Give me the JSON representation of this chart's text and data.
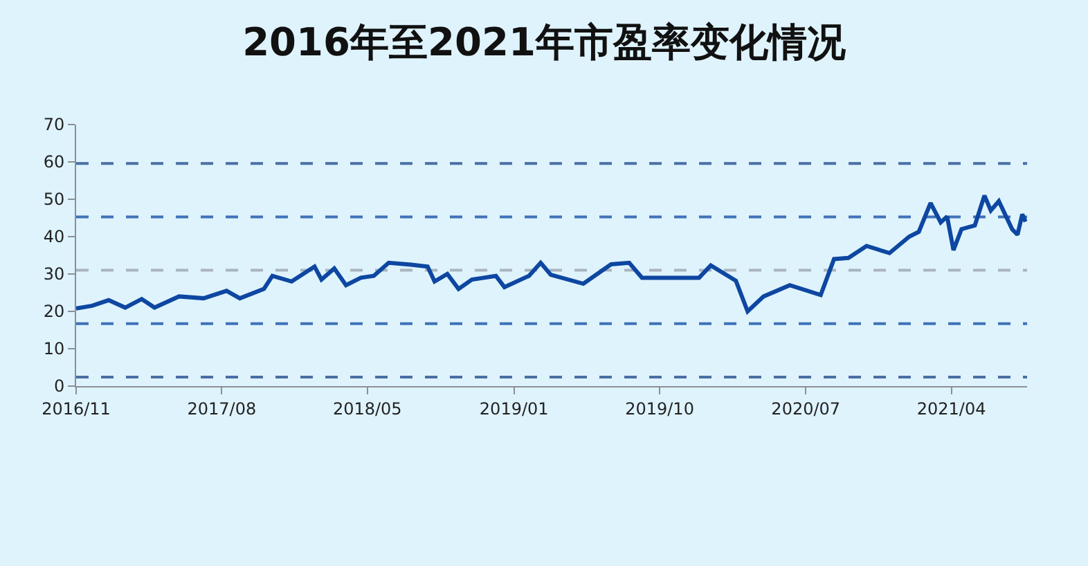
{
  "chart_data": {
    "type": "line",
    "title": "2016年至2021年市盈率变化情况",
    "x": [
      "2016-11-01",
      "2016-12-01",
      "2017-01-01",
      "2017-02-01",
      "2017-03-04",
      "2017-03-28",
      "2017-05-13",
      "2017-06-28",
      "2017-08-10",
      "2017-09-04",
      "2017-10-19",
      "2017-11-04",
      "2017-12-10",
      "2018-01-22",
      "2018-02-04",
      "2018-02-28",
      "2018-03-22",
      "2018-04-19",
      "2018-05-13",
      "2018-06-10",
      "2018-07-22",
      "2018-08-22",
      "2018-09-04",
      "2018-09-28",
      "2018-10-19",
      "2018-11-13",
      "2018-12-28",
      "2019-01-13",
      "2019-02-28",
      "2019-03-22",
      "2019-04-10",
      "2019-06-10",
      "2019-08-01",
      "2019-09-04",
      "2019-09-28",
      "2020-01-13",
      "2020-02-04",
      "2020-03-22",
      "2020-04-13",
      "2020-05-13",
      "2020-07-01",
      "2020-08-28",
      "2020-09-22",
      "2020-10-19",
      "2020-11-22",
      "2021-01-04",
      "2021-02-10",
      "2021-02-28",
      "2021-03-22",
      "2021-04-10",
      "2021-04-22",
      "2021-05-04",
      "2021-05-19",
      "2021-06-13",
      "2021-07-01",
      "2021-07-13",
      "2021-07-28",
      "2021-08-22",
      "2021-09-01",
      "2021-09-10",
      "2021-09-16"
    ],
    "series": [
      {
        "color": "#0d47a1",
        "values": [
          20.8,
          21.5,
          23,
          21,
          23.3,
          21,
          24,
          23.5,
          25.5,
          23.5,
          26,
          29.5,
          28,
          32,
          28.5,
          31.5,
          27,
          29,
          29.5,
          33,
          32.5,
          32,
          28,
          30,
          26,
          28.5,
          29.5,
          26.5,
          29.5,
          33,
          29.8,
          27.4,
          32.6,
          33,
          29,
          29,
          32.3,
          28.2,
          20,
          24,
          27,
          24.4,
          34,
          34.3,
          37.5,
          35.6,
          40,
          41.3,
          49,
          43.8,
          45.4,
          36.4,
          42,
          43,
          51,
          47,
          49.5,
          42,
          40.5,
          46,
          44
        ]
      }
    ],
    "xlim": [
      "2016-11-01",
      "2021-09-19"
    ],
    "xticks": [
      {
        "value": "2016-11-01",
        "label": "2016/11"
      },
      {
        "value": "2017-08-01",
        "label": "2017/08"
      },
      {
        "value": "2018-05-01",
        "label": "2018/05"
      },
      {
        "value": "2019-01-31",
        "label": "2019/01"
      },
      {
        "value": "2019-10-31",
        "label": "2019/10"
      },
      {
        "value": "2020-07-31",
        "label": "2020/07"
      },
      {
        "value": "2021-04-30",
        "label": "2021/04"
      }
    ],
    "ylim": [
      0,
      70
    ],
    "yticks": [
      0,
      10,
      20,
      30,
      40,
      50,
      60,
      70
    ],
    "ref_lines": [
      {
        "axis": "y",
        "value": 59.6,
        "color": "#4a6fa5",
        "line_style": "dashed"
      },
      {
        "axis": "y",
        "value": 45.3,
        "color": "#3f72b8",
        "line_style": "dashed"
      },
      {
        "axis": "y",
        "value": 31,
        "color": "#a9b4bd",
        "line_style": "dashed"
      },
      {
        "axis": "y",
        "value": 16.7,
        "color": "#3f72b8",
        "line_style": "dashed"
      },
      {
        "axis": "y",
        "value": 2.4,
        "color": "#4a6fa5",
        "line_style": "dashed"
      }
    ],
    "grid": false,
    "marker": "none",
    "line_style": "solid"
  }
}
